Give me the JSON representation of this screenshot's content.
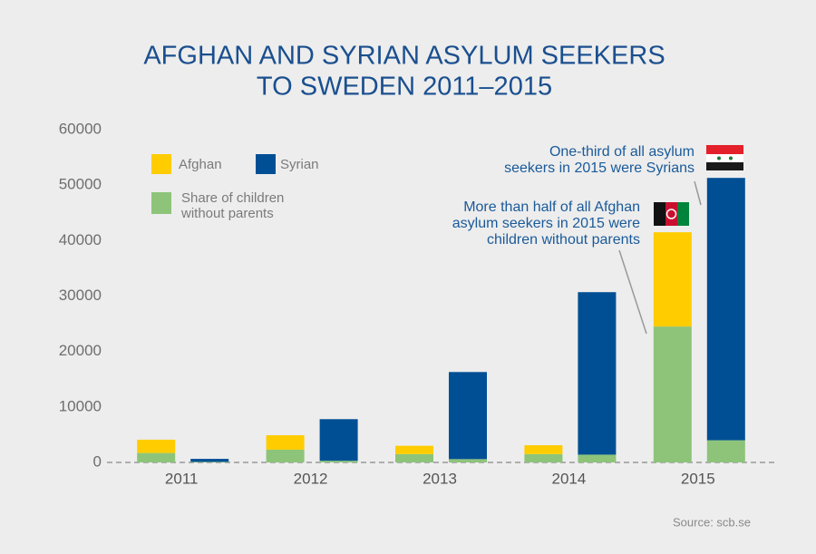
{
  "chart_data": {
    "type": "stacked_grouped_bar",
    "title": [
      "AFGHAN AND SYRIAN ASYLUM SEEKERS",
      "TO SWEDEN 2011–2015"
    ],
    "categories": [
      "2011",
      "2012",
      "2013",
      "2014",
      "2015"
    ],
    "series": [
      {
        "name": "Share of children without parents",
        "color": "#8dc47a",
        "stack": 0,
        "values": [
          1700,
          2300,
          1500,
          1500,
          24500
        ]
      },
      {
        "name": "Afghan",
        "color": "#ffcc00",
        "stack": 0,
        "values": [
          2400,
          2600,
          1500,
          1600,
          17000
        ]
      },
      {
        "color": "#8dc47a",
        "stack": 1,
        "values": [
          100,
          300,
          600,
          1400,
          4000
        ]
      },
      {
        "name": "Syrian",
        "color": "#004f95",
        "stack": 1,
        "values": [
          540,
          7500,
          15700,
          29300,
          47300
        ]
      }
    ],
    "ylim": [
      0,
      60000
    ],
    "yticks": [
      0,
      10000,
      20000,
      30000,
      40000,
      50000,
      60000
    ],
    "annotations": [
      {
        "text": [
          "One-third of all asylum",
          "seekers in 2015 were Syrians"
        ]
      },
      {
        "text": [
          "More than half of all Afghan",
          "asylum seekers in 2015 were",
          "children without parents"
        ]
      }
    ],
    "source": "Source: scb.se"
  }
}
